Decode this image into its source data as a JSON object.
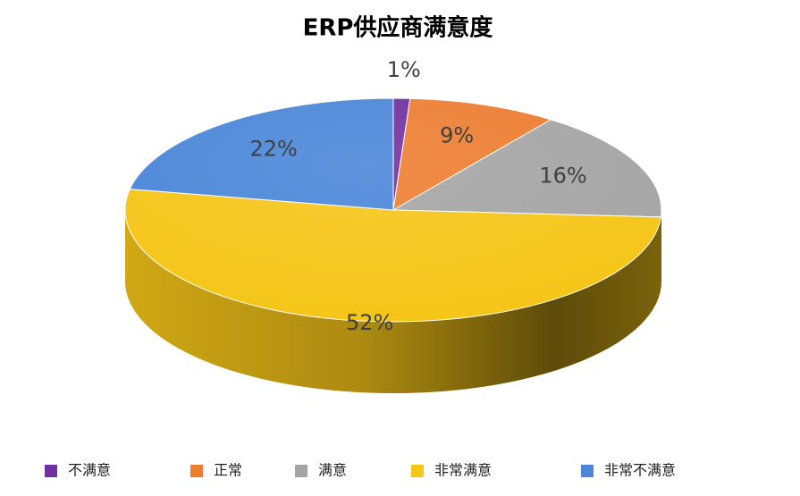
{
  "chart_data": {
    "type": "pie3d",
    "title": "ERP供应商满意度",
    "categories": [
      "不满意",
      "正常",
      "满意",
      "非常满意",
      "非常不满意"
    ],
    "values": [
      1,
      9,
      16,
      52,
      22
    ],
    "value_labels": [
      "1%",
      "9%",
      "16%",
      "52%",
      "22%"
    ],
    "colors": [
      "#7030a0",
      "#ed7d31",
      "#a5a5a5",
      "#f5c518",
      "#4a86d8"
    ],
    "legend": "bottom"
  }
}
